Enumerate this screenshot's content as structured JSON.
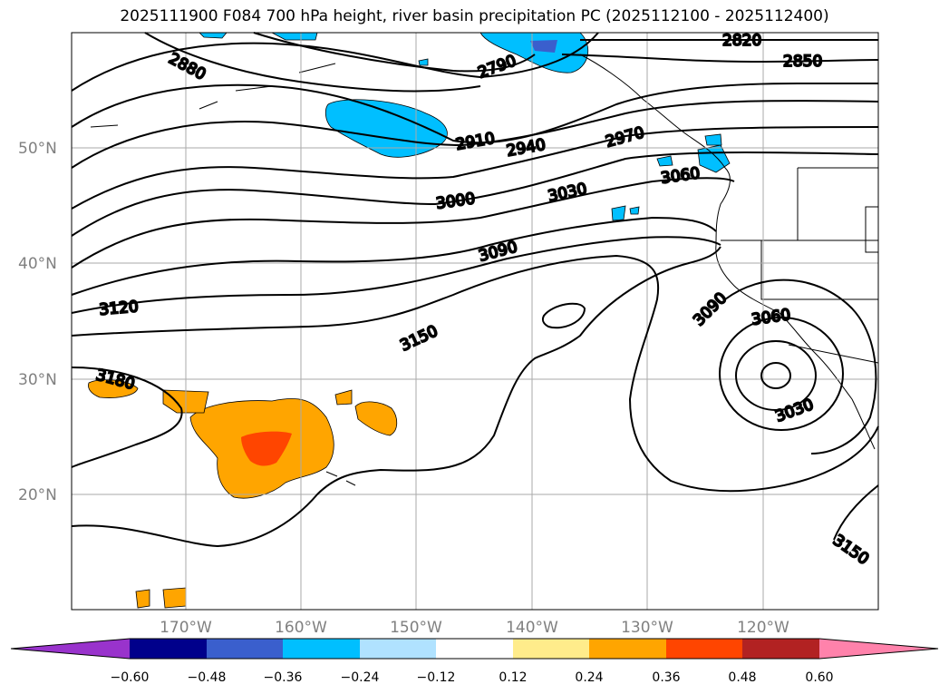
{
  "title": "2025111900 F084 700 hPa height, river basin precipitation PC (2025112100 - 2025112400)",
  "lat_labels": [
    "50°N",
    "40°N",
    "30°N",
    "20°N"
  ],
  "lon_labels": [
    "170°W",
    "160°W",
    "150°W",
    "140°W",
    "130°W",
    "120°W"
  ],
  "contour_labels": [
    "2880",
    "2790",
    "2820",
    "2850",
    "2910",
    "2940",
    "2970",
    "3000",
    "3030",
    "3060",
    "3090",
    "3120",
    "3150",
    "3180",
    "3090",
    "3060",
    "3030",
    "3150"
  ],
  "colorbar": {
    "ticks": [
      "−0.60",
      "−0.48",
      "−0.36",
      "−0.24",
      "−0.12",
      "0.12",
      "0.24",
      "0.36",
      "0.48",
      "0.60"
    ],
    "colors": [
      "#9933cc",
      "#00008b",
      "#3a5fcd",
      "#00bfff",
      "#b0e2ff",
      "#ffffff",
      "#ffec8b",
      "#ffa500",
      "#ff4500",
      "#b22222",
      "#ff82ab"
    ]
  }
}
